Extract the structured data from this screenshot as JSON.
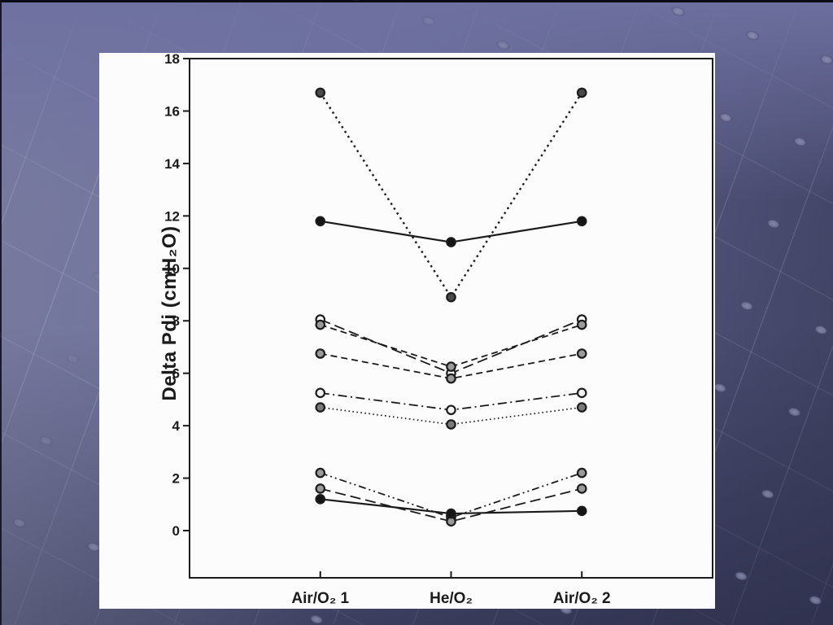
{
  "chart_data": {
    "type": "line",
    "title": "",
    "xlabel": "",
    "ylabel": "Delta Pdi (cmH₂O)",
    "categories": [
      "Air/O₂ 1",
      "He/O₂",
      "Air/O₂ 2"
    ],
    "yticks": [
      0,
      2,
      4,
      6,
      8,
      10,
      12,
      14,
      16,
      18
    ],
    "ylim": [
      -1.8,
      18
    ],
    "grid": false,
    "legend": "none",
    "colors": {
      "line": "#1b1b1b",
      "marker_ring": "#1b1b1b",
      "panel_background": "#fcfcfd",
      "slide_background": "#6b6e9a"
    },
    "series": [
      {
        "id": "line-01",
        "style": "dotted-coarse",
        "marker_fill": "#4a4a4a",
        "values": [
          16.7,
          8.9,
          16.7
        ]
      },
      {
        "id": "line-02",
        "style": "solid",
        "marker_fill": "#151515",
        "values": [
          11.8,
          11.0,
          11.8
        ]
      },
      {
        "id": "line-03",
        "style": "long-dash",
        "marker_fill": "#ffffff",
        "values": [
          8.05,
          6.0,
          8.05
        ]
      },
      {
        "id": "line-04",
        "style": "dash",
        "marker_fill": "#9a9a9a",
        "values": [
          7.85,
          6.25,
          7.85
        ]
      },
      {
        "id": "line-05",
        "style": "dash",
        "marker_fill": "#9a9a9a",
        "values": [
          6.75,
          5.8,
          6.75
        ]
      },
      {
        "id": "line-06",
        "style": "dash-dot",
        "marker_fill": "#f2f2f2",
        "values": [
          5.25,
          4.6,
          5.25
        ]
      },
      {
        "id": "line-07",
        "style": "dotted-fine",
        "marker_fill": "#7a7a7a",
        "values": [
          4.7,
          4.05,
          4.7
        ]
      },
      {
        "id": "line-08",
        "style": "dash-dot-dot",
        "marker_fill": "#9a9a9a",
        "values": [
          2.2,
          0.5,
          2.2
        ]
      },
      {
        "id": "line-09",
        "style": "long-dash",
        "marker_fill": "#9a9a9a",
        "values": [
          1.6,
          0.35,
          1.6
        ]
      },
      {
        "id": "line-10",
        "style": "solid",
        "marker_fill": "#151515",
        "values": [
          1.2,
          0.65,
          0.75
        ]
      }
    ]
  }
}
